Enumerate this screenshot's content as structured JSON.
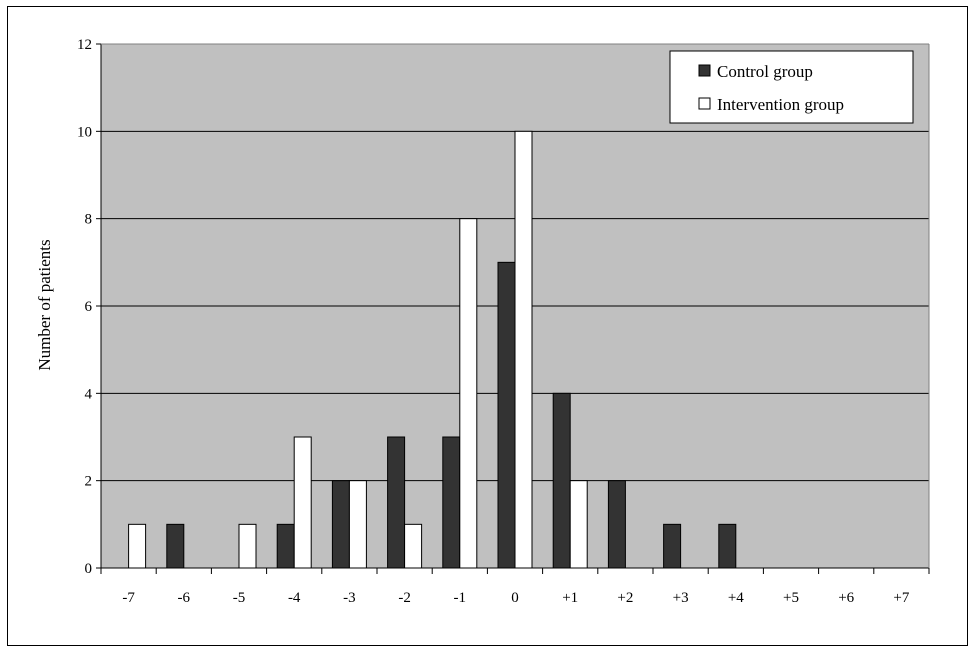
{
  "chart_data": {
    "type": "bar",
    "title": "",
    "xlabel": "",
    "ylabel": "Number of patients",
    "ylim": [
      0,
      12
    ],
    "yticks": [
      0,
      2,
      4,
      6,
      8,
      10,
      12
    ],
    "grid": true,
    "legend_position": "top-right",
    "categories": [
      "-7",
      "-6",
      "-5",
      "-4",
      "-3",
      "-2",
      "-1",
      "0",
      "+1",
      "+2",
      "+3",
      "+4",
      "+5",
      "+6",
      "+7"
    ],
    "series": [
      {
        "name": "Control group",
        "color": "#333333",
        "values": [
          0,
          1,
          0,
          1,
          2,
          3,
          3,
          7,
          4,
          2,
          1,
          1,
          0,
          0,
          0
        ]
      },
      {
        "name": "Intervention group",
        "color": "#ffffff",
        "values": [
          1,
          0,
          1,
          3,
          2,
          1,
          8,
          10,
          2,
          0,
          0,
          0,
          0,
          0,
          0
        ]
      }
    ],
    "plot_background": "#c0c0c0"
  }
}
